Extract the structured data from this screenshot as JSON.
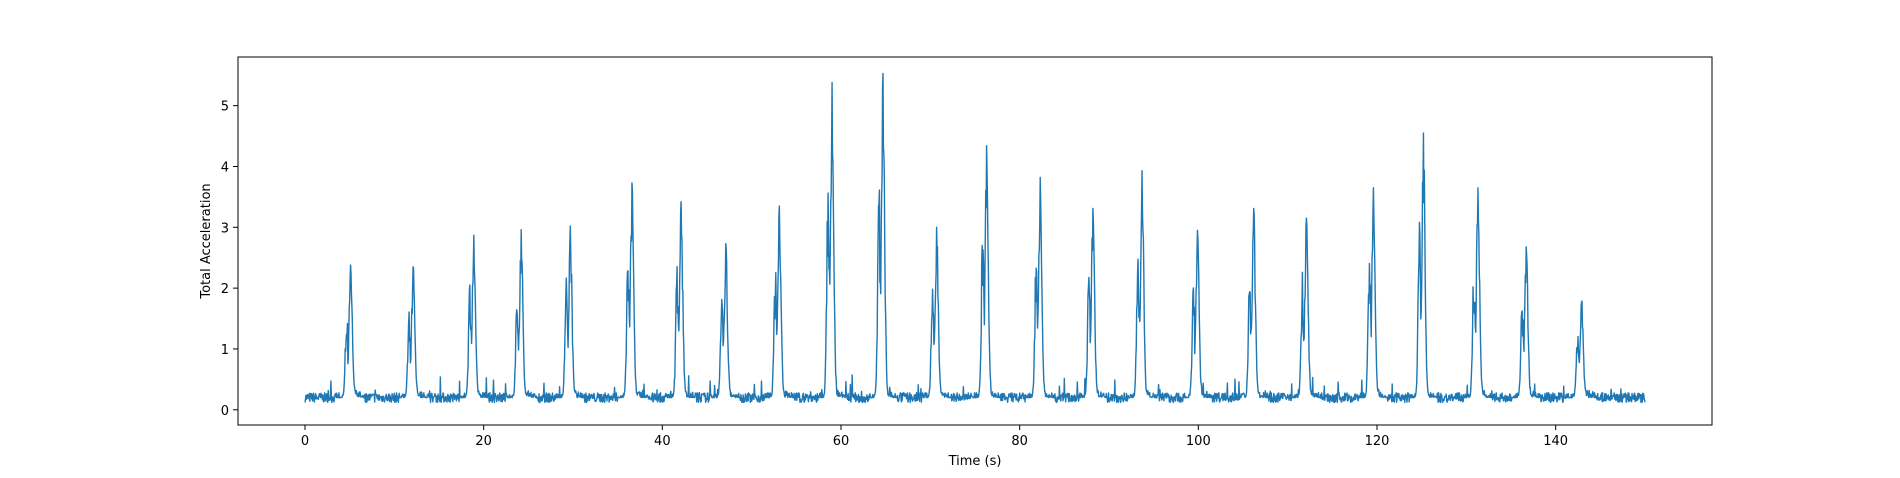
{
  "chart_data": {
    "type": "line",
    "title": "",
    "xlabel": "Time (s)",
    "ylabel": "Total Acceleration",
    "xlim": [
      -7.5,
      157.5
    ],
    "ylim": [
      -0.25,
      5.8
    ],
    "x_ticks": [
      0,
      20,
      40,
      60,
      80,
      100,
      120,
      140
    ],
    "y_ticks": [
      0,
      1,
      2,
      3,
      4,
      5
    ],
    "grid": false,
    "legend": "none",
    "series": [
      {
        "color": "#1f77b4",
        "x_range": [
          0,
          150
        ],
        "baseline": 0.2,
        "noise": 0.08,
        "peaks": [
          {
            "t": 5.1,
            "v": 2.38
          },
          {
            "t": 12.1,
            "v": 2.35
          },
          {
            "t": 18.9,
            "v": 2.87
          },
          {
            "t": 24.2,
            "v": 2.96
          },
          {
            "t": 29.7,
            "v": 3.02
          },
          {
            "t": 36.6,
            "v": 3.73
          },
          {
            "t": 42.1,
            "v": 3.42
          },
          {
            "t": 47.1,
            "v": 2.73
          },
          {
            "t": 53.1,
            "v": 3.35
          },
          {
            "t": 59.0,
            "v": 5.38
          },
          {
            "t": 64.7,
            "v": 5.53
          },
          {
            "t": 70.7,
            "v": 3.0
          },
          {
            "t": 76.3,
            "v": 4.34
          },
          {
            "t": 82.3,
            "v": 3.82
          },
          {
            "t": 88.2,
            "v": 3.31
          },
          {
            "t": 93.7,
            "v": 3.93
          },
          {
            "t": 99.9,
            "v": 2.95
          },
          {
            "t": 106.2,
            "v": 3.31
          },
          {
            "t": 112.1,
            "v": 3.15
          },
          {
            "t": 119.6,
            "v": 3.65
          },
          {
            "t": 125.2,
            "v": 4.55
          },
          {
            "t": 131.3,
            "v": 3.65
          },
          {
            "t": 136.7,
            "v": 2.68
          },
          {
            "t": 142.9,
            "v": 1.77
          }
        ]
      }
    ]
  }
}
